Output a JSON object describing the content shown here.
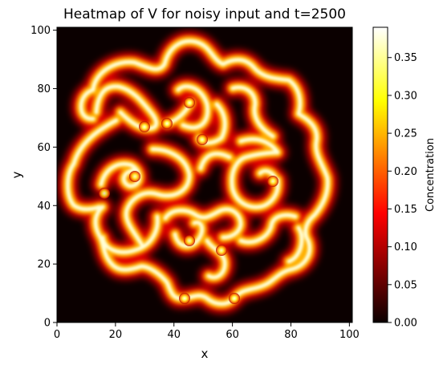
{
  "chart_data": {
    "type": "heatmap",
    "title": "Heatmap of V for noisy input and t=2500",
    "xlabel": "x",
    "ylabel": "y",
    "xlim": [
      0,
      101
    ],
    "ylim": [
      0,
      101
    ],
    "xticks": [
      "0",
      "20",
      "40",
      "60",
      "80",
      "100"
    ],
    "yticks": [
      "0",
      "20",
      "40",
      "60",
      "80",
      "100"
    ],
    "colormap": "hot",
    "colorbar": {
      "label": "Concentration",
      "range": [
        0.0,
        0.39
      ],
      "ticks": [
        "0.00",
        "0.05",
        "0.10",
        "0.15",
        "0.20",
        "0.25",
        "0.30",
        "0.35"
      ]
    },
    "background_value": 0.0,
    "peak_value": 0.39,
    "pattern": "labyrinthine stripes (Turing pattern) confined to an irregular blob roughly spanning x 5–95, y 5–97"
  }
}
